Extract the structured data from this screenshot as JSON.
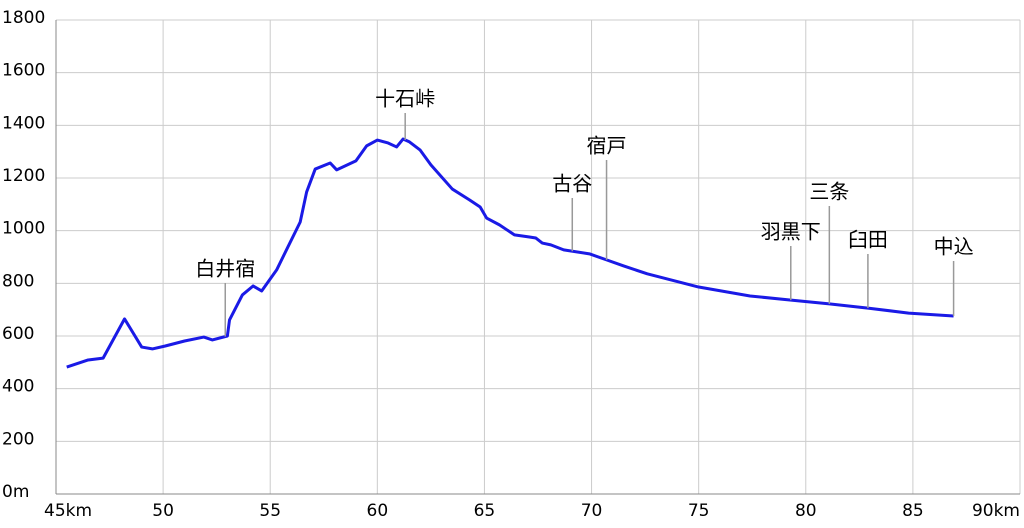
{
  "chart_data": {
    "type": "line",
    "x": [
      45.5,
      46.5,
      47.2,
      48.2,
      49.0,
      49.5,
      50.1,
      51.0,
      51.9,
      52.3,
      53.0,
      53.1,
      53.7,
      54.2,
      54.6,
      55.3,
      55.8,
      56.4,
      56.7,
      57.1,
      57.8,
      58.1,
      59.0,
      59.5,
      60.0,
      60.5,
      60.9,
      61.2,
      61.5,
      62.0,
      62.5,
      63.5,
      64.3,
      64.8,
      65.1,
      65.7,
      66.4,
      67.1,
      67.4,
      67.7,
      68.1,
      68.7,
      69.9,
      70.7,
      71.5,
      72.6,
      75.0,
      77.4,
      79.2,
      81.1,
      82.9,
      84.8,
      86.9
    ],
    "series": [
      {
        "color": "#1a1ae6",
        "values": [
          482,
          509,
          516,
          665,
          558,
          551,
          562,
          581,
          596,
          585,
          600,
          661,
          756,
          790,
          771,
          851,
          934,
          1033,
          1147,
          1234,
          1257,
          1231,
          1265,
          1322,
          1344,
          1333,
          1318,
          1348,
          1337,
          1306,
          1250,
          1158,
          1117,
          1090,
          1048,
          1022,
          984,
          976,
          972,
          953,
          946,
          927,
          912,
          889,
          866,
          836,
          786,
          752,
          737,
          722,
          706,
          687,
          676
        ]
      }
    ],
    "xlim": [
      45,
      90
    ],
    "xticks": [
      {
        "value": 45,
        "label": "45km"
      },
      50,
      55,
      60,
      65,
      70,
      75,
      80,
      85,
      {
        "value": 90,
        "label": "90km"
      }
    ],
    "ylim": [
      0,
      1800
    ],
    "yticks": [
      {
        "value": 0,
        "label": "0m"
      },
      200,
      400,
      600,
      800,
      1000,
      1200,
      1400,
      1600,
      1800
    ],
    "grid": true,
    "annotations": [
      {
        "x": 52.9,
        "text": "白井宿"
      },
      {
        "x": 61.3,
        "text": "十石峠"
      },
      {
        "x": 69.1,
        "text": "古谷"
      },
      {
        "x": 70.7,
        "text": "宿戸"
      },
      {
        "x": 79.3,
        "text": "羽黒下"
      },
      {
        "x": 81.1,
        "text": "三条"
      },
      {
        "x": 82.9,
        "text": "臼田"
      },
      {
        "x": 86.9,
        "text": "中込"
      }
    ]
  }
}
